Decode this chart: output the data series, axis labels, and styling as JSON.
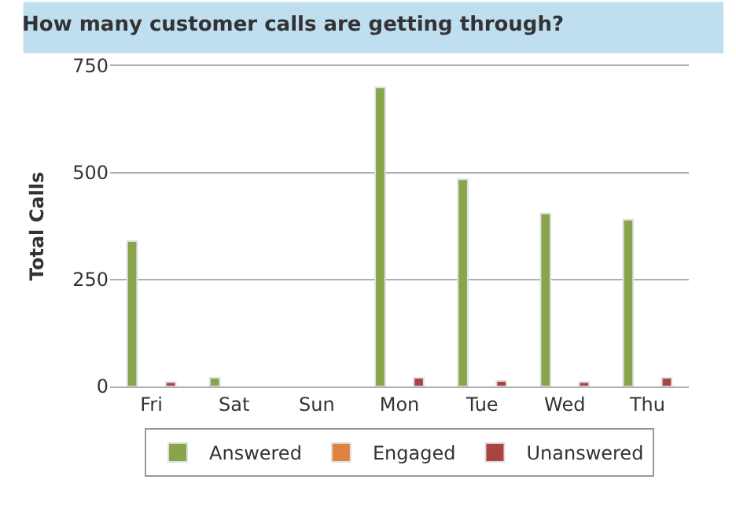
{
  "chart_data": {
    "type": "bar",
    "title": "How many customer calls are getting through?",
    "ylabel": "Total Calls",
    "categories": [
      "Fri",
      "Sat",
      "Sun",
      "Mon",
      "Tue",
      "Wed",
      "Thu"
    ],
    "series": [
      {
        "name": "Answered",
        "color": "#88a54b",
        "values": [
          340,
          20,
          null,
          700,
          485,
          405,
          390
        ]
      },
      {
        "name": "Engaged",
        "color": "#dd8540",
        "values": [
          null,
          null,
          null,
          null,
          null,
          null,
          null
        ]
      },
      {
        "name": "Unanswered",
        "color": "#a94442",
        "values": [
          10,
          null,
          null,
          20,
          13,
          10,
          20
        ]
      }
    ],
    "ylim": [
      0,
      750
    ],
    "yticks": [
      0,
      250,
      500,
      750
    ],
    "grid": "y",
    "legend": "bottom"
  }
}
